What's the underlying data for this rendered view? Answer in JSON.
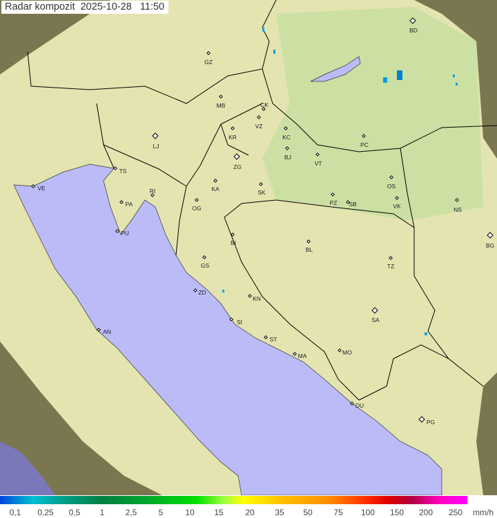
{
  "title": "Radar kompozit  2025-10-28   11:50",
  "colors": {
    "sea": "#bbbbf8",
    "coverage": "#e6e6b4",
    "outside": "#7a7650",
    "border": "#000000",
    "precip_light": "#00a0e0",
    "precip_mid": "#0060c0"
  },
  "cities": [
    {
      "code": "GZ",
      "type": "small"
    },
    {
      "code": "BD",
      "type": "capital"
    },
    {
      "code": "MB",
      "type": "small"
    },
    {
      "code": "CK",
      "type": "small"
    },
    {
      "code": "VZ",
      "type": "small"
    },
    {
      "code": "KR",
      "type": "small"
    },
    {
      "code": "KC",
      "type": "small"
    },
    {
      "code": "LJ",
      "type": "capital"
    },
    {
      "code": "PC",
      "type": "small"
    },
    {
      "code": "BJ",
      "type": "small"
    },
    {
      "code": "VT",
      "type": "small"
    },
    {
      "code": "TS",
      "type": "small"
    },
    {
      "code": "ZG",
      "type": "capital"
    },
    {
      "code": "VE",
      "type": "small"
    },
    {
      "code": "KA",
      "type": "small"
    },
    {
      "code": "SK",
      "type": "small"
    },
    {
      "code": "OS",
      "type": "small"
    },
    {
      "code": "RI",
      "type": "small"
    },
    {
      "code": "PA",
      "type": "small"
    },
    {
      "code": "OG",
      "type": "small"
    },
    {
      "code": "PZ",
      "type": "small"
    },
    {
      "code": "SB",
      "type": "small"
    },
    {
      "code": "VK",
      "type": "small"
    },
    {
      "code": "NS",
      "type": "small"
    },
    {
      "code": "PU",
      "type": "small"
    },
    {
      "code": "BI",
      "type": "small"
    },
    {
      "code": "BL",
      "type": "small"
    },
    {
      "code": "BG",
      "type": "capital"
    },
    {
      "code": "TZ",
      "type": "small"
    },
    {
      "code": "GS",
      "type": "small"
    },
    {
      "code": "ZD",
      "type": "small"
    },
    {
      "code": "KN",
      "type": "small"
    },
    {
      "code": "SA",
      "type": "capital"
    },
    {
      "code": "SI",
      "type": "small"
    },
    {
      "code": "AN",
      "type": "small"
    },
    {
      "code": "ST",
      "type": "small"
    },
    {
      "code": "MO",
      "type": "small"
    },
    {
      "code": "MA",
      "type": "small"
    },
    {
      "code": "DU",
      "type": "small"
    },
    {
      "code": "PG",
      "type": "capital"
    }
  ],
  "legend": {
    "labels": [
      "0,1",
      "0,25",
      "0,5",
      "1",
      "2,5",
      "5",
      "10",
      "15",
      "20",
      "35",
      "50",
      "75",
      "100",
      "150",
      "200",
      "250"
    ],
    "unit": "mm/h"
  }
}
